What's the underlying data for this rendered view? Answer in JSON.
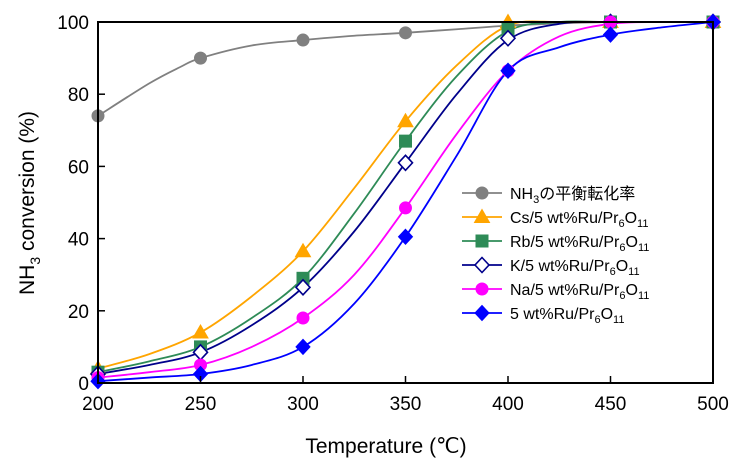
{
  "chart_data": {
    "type": "line",
    "xlabel": "Temperature (℃)",
    "ylabel_main": "NH",
    "ylabel_sub": "3",
    "ylabel_rest": " conversion (%)",
    "xlim": [
      200,
      500
    ],
    "ylim": [
      0,
      100
    ],
    "xticks": [
      200,
      250,
      300,
      350,
      400,
      450,
      500
    ],
    "yticks": [
      0,
      20,
      40,
      60,
      80,
      100
    ],
    "grid": false,
    "legend_position": "right",
    "series": [
      {
        "name": "NH₃の平衡転化率",
        "legend": [
          "NH",
          "3",
          "の平衡転化率"
        ],
        "color": "#808080",
        "marker": "circle",
        "filled": true,
        "points": [
          [
            200,
            74
          ],
          [
            250,
            90
          ],
          [
            300,
            95
          ],
          [
            350,
            97
          ],
          [
            400,
            99
          ],
          [
            450,
            100
          ],
          [
            500,
            100
          ]
        ],
        "curve": [
          [
            200,
            74
          ],
          [
            225,
            83
          ],
          [
            240,
            87.5
          ],
          [
            250,
            90
          ],
          [
            275,
            93.5
          ],
          [
            300,
            95
          ],
          [
            325,
            96.2
          ],
          [
            350,
            97
          ],
          [
            375,
            98
          ],
          [
            400,
            99
          ],
          [
            425,
            99.6
          ],
          [
            450,
            100
          ],
          [
            475,
            100
          ],
          [
            500,
            100
          ]
        ]
      },
      {
        "name": "Cs/5 wt%Ru/Pr6O11",
        "legend": [
          "Cs/5 wt%Ru/Pr",
          "6",
          "O",
          "11"
        ],
        "color": "#FFA500",
        "marker": "triangle",
        "filled": true,
        "points": [
          [
            200,
            4
          ],
          [
            250,
            14
          ],
          [
            300,
            36.5
          ],
          [
            350,
            72.5
          ],
          [
            400,
            100
          ],
          [
            450,
            100
          ],
          [
            500,
            100
          ]
        ],
        "curve": [
          [
            200,
            4
          ],
          [
            225,
            8
          ],
          [
            250,
            14
          ],
          [
            275,
            24
          ],
          [
            300,
            36.5
          ],
          [
            325,
            54
          ],
          [
            350,
            72.5
          ],
          [
            375,
            88
          ],
          [
            400,
            99
          ],
          [
            425,
            100
          ],
          [
            450,
            100
          ],
          [
            500,
            100
          ]
        ]
      },
      {
        "name": "Rb/5 wt%Ru/Pr6O11",
        "legend": [
          "Rb/5 wt%Ru/Pr",
          "6",
          "O",
          "11"
        ],
        "color": "#2E8B57",
        "marker": "square",
        "filled": true,
        "points": [
          [
            200,
            3
          ],
          [
            250,
            10
          ],
          [
            300,
            29
          ],
          [
            350,
            67
          ],
          [
            400,
            98
          ],
          [
            450,
            100
          ],
          [
            500,
            100
          ]
        ],
        "curve": [
          [
            200,
            3
          ],
          [
            225,
            6
          ],
          [
            250,
            10
          ],
          [
            275,
            18
          ],
          [
            300,
            29
          ],
          [
            325,
            47
          ],
          [
            350,
            67
          ],
          [
            375,
            85
          ],
          [
            400,
            97.5
          ],
          [
            425,
            100
          ],
          [
            450,
            100
          ],
          [
            500,
            100
          ]
        ]
      },
      {
        "name": "K/5 wt%Ru/Pr6O11",
        "legend": [
          "K/5 wt%Ru/Pr",
          "6",
          "O",
          "11"
        ],
        "color": "#00008B",
        "marker": "diamond",
        "filled": false,
        "points": [
          [
            200,
            2.5
          ],
          [
            250,
            8.5
          ],
          [
            300,
            26.5
          ],
          [
            350,
            61
          ],
          [
            400,
            95.5
          ],
          [
            450,
            100
          ],
          [
            500,
            100
          ]
        ],
        "curve": [
          [
            200,
            2.5
          ],
          [
            225,
            5
          ],
          [
            250,
            8.5
          ],
          [
            275,
            16
          ],
          [
            300,
            26.5
          ],
          [
            325,
            42
          ],
          [
            350,
            61
          ],
          [
            375,
            80
          ],
          [
            400,
            95
          ],
          [
            425,
            99.5
          ],
          [
            450,
            100
          ],
          [
            500,
            100
          ]
        ]
      },
      {
        "name": "Na/5 wt%Ru/Pr6O11",
        "legend": [
          "Na/5 wt%Ru/Pr",
          "6",
          "O",
          "11"
        ],
        "color": "#FF00FF",
        "marker": "circle",
        "filled": true,
        "points": [
          [
            200,
            1.5
          ],
          [
            250,
            5
          ],
          [
            300,
            18
          ],
          [
            350,
            48.5
          ],
          [
            400,
            86.5
          ],
          [
            450,
            100
          ],
          [
            500,
            100
          ]
        ],
        "curve": [
          [
            200,
            1.5
          ],
          [
            225,
            3
          ],
          [
            250,
            5
          ],
          [
            275,
            10
          ],
          [
            300,
            18
          ],
          [
            325,
            30
          ],
          [
            350,
            48.5
          ],
          [
            375,
            69
          ],
          [
            400,
            86.5
          ],
          [
            425,
            96
          ],
          [
            450,
            99.5
          ],
          [
            475,
            100
          ],
          [
            500,
            100
          ]
        ]
      },
      {
        "name": "5 wt%Ru/Pr6O11",
        "legend": [
          "5 wt%Ru/Pr",
          "6",
          "O",
          "11"
        ],
        "color": "#0000FF",
        "marker": "diamond",
        "filled": true,
        "points": [
          [
            200,
            0.5
          ],
          [
            250,
            2.5
          ],
          [
            300,
            10
          ],
          [
            350,
            40.5
          ],
          [
            400,
            86.5
          ],
          [
            450,
            96.5
          ],
          [
            500,
            100
          ]
        ],
        "curve": [
          [
            200,
            0.5
          ],
          [
            225,
            1.5
          ],
          [
            250,
            2.5
          ],
          [
            275,
            5
          ],
          [
            300,
            10
          ],
          [
            325,
            22
          ],
          [
            350,
            40.5
          ],
          [
            375,
            63
          ],
          [
            400,
            86.5
          ],
          [
            425,
            93
          ],
          [
            450,
            96.5
          ],
          [
            475,
            98.5
          ],
          [
            500,
            100
          ]
        ]
      }
    ]
  }
}
